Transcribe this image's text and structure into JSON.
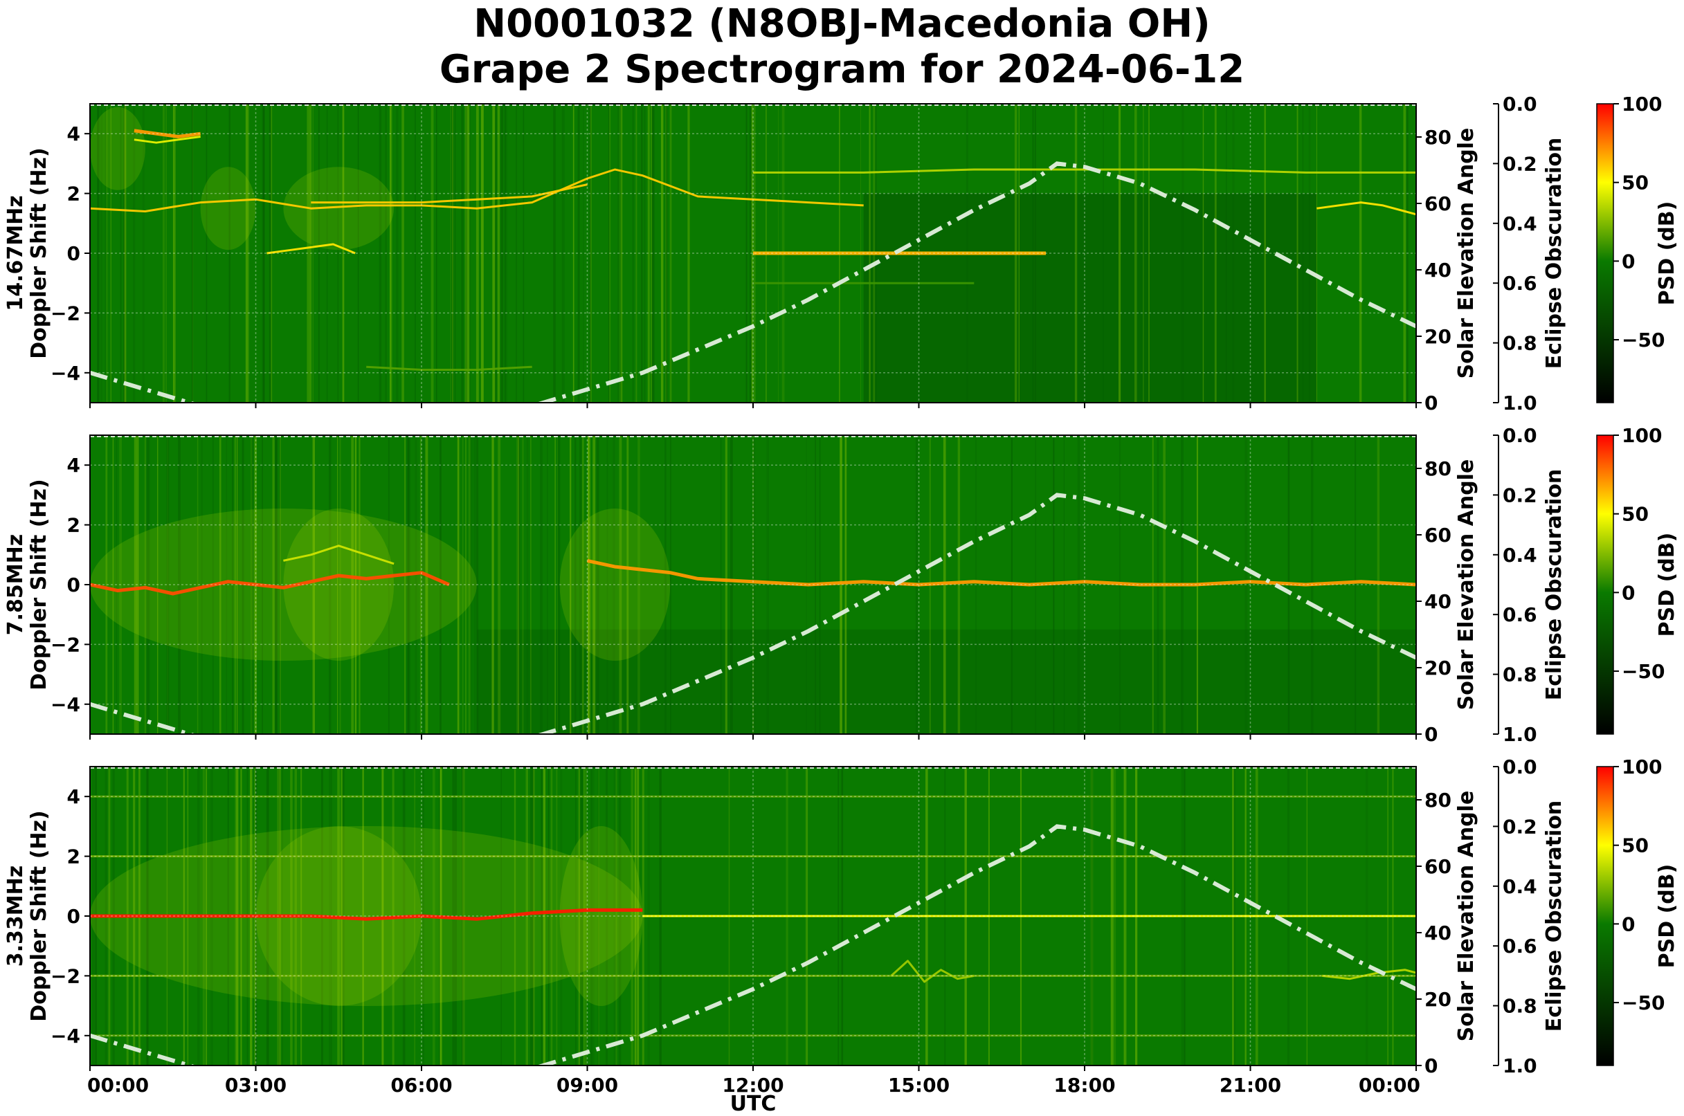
{
  "figure": {
    "title_line1": "N0001032 (N8OBJ-Macedonia OH)",
    "title_line2": "Grape 2 Spectrogram for 2024-06-12",
    "xlabel": "UTC"
  },
  "colors": {
    "background_green": "#0a7a00",
    "deep_green": "#045800",
    "signal_yellow": "#f2f200",
    "signal_orange": "#ff8c00",
    "peak_red": "#ff0000",
    "solar_curve": "#d8ead4",
    "colorbar_stops": [
      "#000000",
      "#0a7a00",
      "#ffff00",
      "#ff0000"
    ]
  },
  "chart_data": [
    {
      "type": "heatmap",
      "frequency_label": "14.67MHz",
      "ylabel": "Doppler Shift (Hz)",
      "ylim": [
        -5,
        5
      ],
      "yticks": [
        "4",
        "2",
        "0",
        "−2",
        "−4"
      ],
      "yticks_values": [
        4,
        2,
        0,
        -2,
        -4
      ],
      "x_ticks": [
        "00:00",
        "03:00",
        "06:00",
        "09:00",
        "12:00",
        "15:00",
        "18:00",
        "21:00",
        "00:00"
      ],
      "x_range_hours": [
        0,
        24
      ],
      "y2label": "Solar Elevation Angle",
      "y2lim": [
        0,
        90
      ],
      "y2ticks": [
        "0",
        "20",
        "40",
        "60",
        "80"
      ],
      "y2ticks_values": [
        0,
        20,
        40,
        60,
        80
      ],
      "y3label": "Eclipse Obscuration",
      "y3ticks": [
        "0.0",
        "0.2",
        "0.4",
        "0.6",
        "0.8",
        "1.0"
      ],
      "colorbar_label": "PSD (dB)",
      "colorbar_ticks": [
        "100",
        "50",
        "0",
        "−50"
      ],
      "colorbar_values": [
        100,
        50,
        0,
        -50
      ],
      "colorbar_range": [
        -90,
        100
      ],
      "grid": true,
      "solar_elevation": {
        "hours": [
          0,
          1,
          2,
          3,
          4,
          5,
          6,
          7,
          8,
          9,
          10,
          11,
          12,
          13,
          14,
          15,
          16,
          17,
          17.5,
          18,
          19,
          20,
          21,
          22,
          23,
          24
        ],
        "degrees": [
          9,
          4,
          -1,
          -5,
          -8,
          -9,
          -8,
          -5,
          -1,
          4,
          9,
          16,
          23,
          31,
          40,
          49,
          58,
          66,
          72,
          71,
          66,
          58,
          49,
          40,
          31,
          23
        ]
      },
      "signal_traces": [
        {
          "hours": [
            0,
            1,
            2,
            3,
            4,
            5,
            6,
            7,
            8,
            8.5,
            9,
            9.5,
            10,
            11,
            12,
            13,
            14
          ],
          "hz": [
            1.5,
            1.4,
            1.7,
            1.8,
            1.5,
            1.6,
            1.6,
            1.5,
            1.7,
            2.1,
            2.5,
            2.8,
            2.6,
            1.9,
            1.8,
            1.7,
            1.6
          ],
          "level": 60
        },
        {
          "hours": [
            4,
            5,
            6,
            7,
            8,
            9
          ],
          "hz": [
            1.7,
            1.7,
            1.7,
            1.8,
            1.9,
            2.3
          ],
          "level": 60
        },
        {
          "hours": [
            0.8,
            1.2,
            1.6,
            2.0
          ],
          "hz": [
            4.1,
            4.0,
            3.9,
            4.0
          ],
          "level": 70
        },
        {
          "hours": [
            0.8,
            1.2,
            1.6,
            2.0
          ],
          "hz": [
            3.8,
            3.7,
            3.8,
            3.9
          ],
          "level": 45
        },
        {
          "hours": [
            3.2,
            3.6,
            4.0,
            4.4,
            4.8
          ],
          "hz": [
            0.0,
            0.1,
            0.2,
            0.3,
            0.0
          ],
          "level": 55
        },
        {
          "hours": [
            12,
            13,
            14,
            15,
            16,
            17.3
          ],
          "hz": [
            0.0,
            0.0,
            0.0,
            0.0,
            0.0,
            0.0
          ],
          "level": 65
        },
        {
          "hours": [
            12,
            14,
            16,
            18,
            20,
            22,
            24
          ],
          "hz": [
            2.7,
            2.7,
            2.8,
            2.8,
            2.8,
            2.7,
            2.7
          ],
          "level": 35
        },
        {
          "hours": [
            22.2,
            22.6,
            23,
            23.4,
            23.8,
            24
          ],
          "hz": [
            1.5,
            1.6,
            1.7,
            1.6,
            1.4,
            1.3
          ],
          "level": 55
        },
        {
          "hours": [
            12,
            13,
            14,
            15,
            16
          ],
          "hz": [
            -1.0,
            -1.0,
            -1.0,
            -1.0,
            -1.0
          ],
          "level": 10
        },
        {
          "hours": [
            5,
            6,
            7,
            8
          ],
          "hz": [
            -3.8,
            -3.9,
            -3.9,
            -3.8
          ],
          "level": 15
        }
      ]
    },
    {
      "type": "heatmap",
      "frequency_label": "7.85MHz",
      "ylabel": "Doppler Shift (Hz)",
      "ylim": [
        -5,
        5
      ],
      "yticks": [
        "4",
        "2",
        "0",
        "−2",
        "−4"
      ],
      "yticks_values": [
        4,
        2,
        0,
        -2,
        -4
      ],
      "x_ticks": [
        "00:00",
        "03:00",
        "06:00",
        "09:00",
        "12:00",
        "15:00",
        "18:00",
        "21:00",
        "00:00"
      ],
      "x_range_hours": [
        0,
        24
      ],
      "y2label": "Solar Elevation Angle",
      "y2lim": [
        0,
        90
      ],
      "y2ticks": [
        "0",
        "20",
        "40",
        "60",
        "80"
      ],
      "y2ticks_values": [
        0,
        20,
        40,
        60,
        80
      ],
      "y3label": "Eclipse Obscuration",
      "y3ticks": [
        "0.0",
        "0.2",
        "0.4",
        "0.6",
        "0.8",
        "1.0"
      ],
      "colorbar_label": "PSD (dB)",
      "colorbar_ticks": [
        "100",
        "50",
        "0",
        "−50"
      ],
      "colorbar_values": [
        100,
        50,
        0,
        -50
      ],
      "colorbar_range": [
        -90,
        100
      ],
      "grid": true,
      "solar_elevation": {
        "hours": [
          0,
          1,
          2,
          3,
          4,
          5,
          6,
          7,
          8,
          9,
          10,
          11,
          12,
          13,
          14,
          15,
          16,
          17,
          17.5,
          18,
          19,
          20,
          21,
          22,
          23,
          24
        ],
        "degrees": [
          9,
          4,
          -1,
          -5,
          -8,
          -9,
          -8,
          -5,
          -1,
          4,
          9,
          16,
          23,
          31,
          40,
          49,
          58,
          66,
          72,
          71,
          66,
          58,
          49,
          40,
          31,
          23
        ]
      },
      "signal_traces": [
        {
          "hours": [
            0,
            0.5,
            1,
            1.5,
            2,
            2.5,
            3,
            3.5,
            4,
            4.5,
            5,
            5.5,
            6,
            6.5
          ],
          "hz": [
            0.0,
            -0.2,
            -0.1,
            -0.3,
            -0.1,
            0.1,
            0.0,
            -0.1,
            0.1,
            0.3,
            0.2,
            0.3,
            0.4,
            0.0
          ],
          "level": 85
        },
        {
          "hours": [
            9,
            9.5,
            10,
            10.5,
            11,
            12,
            13,
            14,
            15,
            16,
            17,
            18,
            19,
            20,
            21,
            22,
            23,
            24
          ],
          "hz": [
            0.8,
            0.6,
            0.5,
            0.4,
            0.2,
            0.1,
            0.0,
            0.1,
            0.0,
            0.1,
            0.0,
            0.1,
            0.0,
            0.0,
            0.1,
            0.0,
            0.1,
            0.0
          ],
          "level": 70
        },
        {
          "hours": [
            3.5,
            4,
            4.5,
            5,
            5.5
          ],
          "hz": [
            0.8,
            1.0,
            1.3,
            1.0,
            0.7
          ],
          "level": 40
        }
      ]
    },
    {
      "type": "heatmap",
      "frequency_label": "3.33MHz",
      "ylabel": "Doppler Shift (Hz)",
      "ylim": [
        -5,
        5
      ],
      "yticks": [
        "4",
        "2",
        "0",
        "−2",
        "−4"
      ],
      "yticks_values": [
        4,
        2,
        0,
        -2,
        -4
      ],
      "x_ticks": [
        "00:00",
        "03:00",
        "06:00",
        "09:00",
        "12:00",
        "15:00",
        "18:00",
        "21:00",
        "00:00"
      ],
      "x_range_hours": [
        0,
        24
      ],
      "y2label": "Solar Elevation Angle",
      "y2lim": [
        0,
        90
      ],
      "y2ticks": [
        "0",
        "20",
        "40",
        "60",
        "80"
      ],
      "y2ticks_values": [
        0,
        20,
        40,
        60,
        80
      ],
      "y3label": "Eclipse Obscuration",
      "y3ticks": [
        "0.0",
        "0.2",
        "0.4",
        "0.6",
        "0.8",
        "1.0"
      ],
      "colorbar_label": "PSD (dB)",
      "colorbar_ticks": [
        "100",
        "50",
        "0",
        "−50"
      ],
      "colorbar_values": [
        100,
        50,
        0,
        -50
      ],
      "colorbar_range": [
        -90,
        100
      ],
      "grid": true,
      "solar_elevation": {
        "hours": [
          0,
          1,
          2,
          3,
          4,
          5,
          6,
          7,
          8,
          9,
          10,
          11,
          12,
          13,
          14,
          15,
          16,
          17,
          17.5,
          18,
          19,
          20,
          21,
          22,
          23,
          24
        ],
        "degrees": [
          9,
          4,
          -1,
          -5,
          -8,
          -9,
          -8,
          -5,
          -1,
          4,
          9,
          16,
          23,
          31,
          40,
          49,
          58,
          66,
          72,
          71,
          66,
          58,
          49,
          40,
          31,
          23
        ]
      },
      "signal_traces": [
        {
          "hours": [
            0,
            1,
            2,
            3,
            4,
            5,
            6,
            7,
            8,
            9,
            10
          ],
          "hz": [
            0.0,
            0.0,
            0.0,
            0.0,
            0.0,
            -0.1,
            0.0,
            -0.1,
            0.1,
            0.2,
            0.2
          ],
          "level": 95
        },
        {
          "hours": [
            10,
            12,
            14,
            16,
            18,
            20,
            22,
            24
          ],
          "hz": [
            0.0,
            0.0,
            0.0,
            0.0,
            0.0,
            0.0,
            0.0,
            0.0
          ],
          "level": 50
        },
        {
          "hours": [
            0,
            4,
            8,
            12,
            16,
            20,
            24
          ],
          "hz": [
            2.0,
            2.0,
            2.0,
            2.0,
            2.0,
            2.0,
            2.0
          ],
          "level": 20
        },
        {
          "hours": [
            0,
            4,
            8,
            12,
            16,
            20,
            24
          ],
          "hz": [
            -2.0,
            -2.0,
            -2.0,
            -2.0,
            -2.0,
            -2.0,
            -2.0
          ],
          "level": 20
        },
        {
          "hours": [
            0,
            4,
            8,
            12,
            16,
            20,
            24
          ],
          "hz": [
            4.0,
            4.0,
            4.0,
            4.0,
            4.0,
            4.0,
            4.0
          ],
          "level": 15
        },
        {
          "hours": [
            0,
            4,
            8,
            12,
            16,
            20,
            24
          ],
          "hz": [
            -4.0,
            -4.0,
            -4.0,
            -4.0,
            -4.0,
            -4.0,
            -4.0
          ],
          "level": 15
        },
        {
          "hours": [
            14.5,
            14.8,
            15.1,
            15.4,
            15.7,
            16
          ],
          "hz": [
            -2.0,
            -1.5,
            -2.2,
            -1.8,
            -2.1,
            -2.0
          ],
          "level": 30
        },
        {
          "hours": [
            22.3,
            22.8,
            23.3,
            23.8,
            24
          ],
          "hz": [
            -2.0,
            -2.1,
            -1.9,
            -1.8,
            -1.9
          ],
          "level": 35
        }
      ]
    }
  ]
}
